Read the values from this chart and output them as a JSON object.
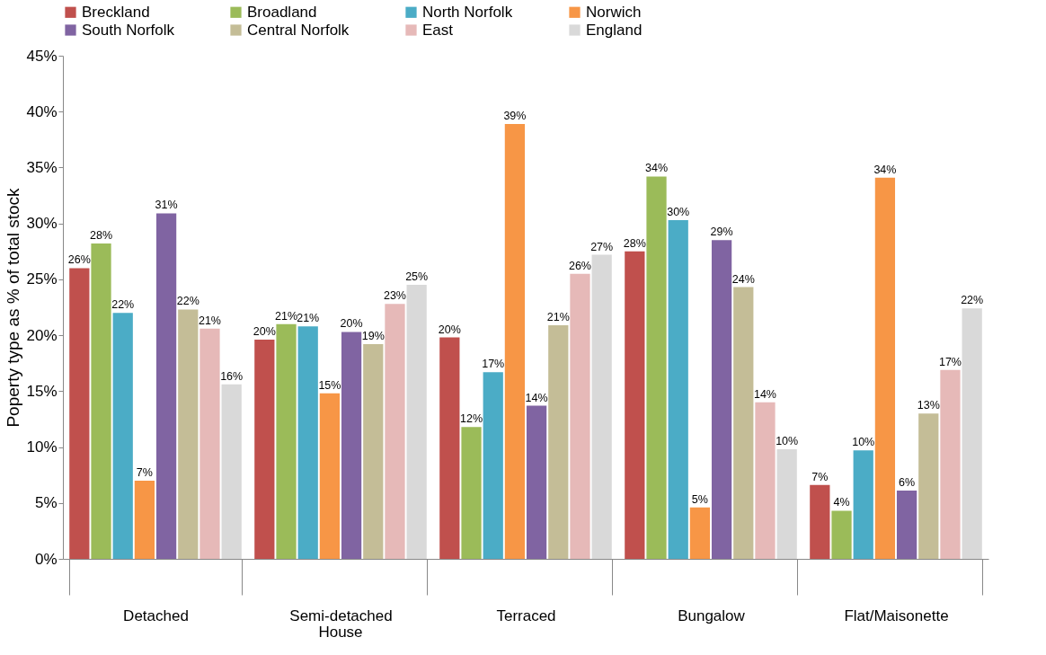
{
  "chart_data": {
    "type": "bar",
    "ylabel": "Poperty type as % of total stock",
    "categories": [
      "Detached",
      "Semi-detached",
      "Terraced",
      "Bungalow",
      "Flat/Maisonette"
    ],
    "series": [
      {
        "name": "Breckland",
        "color": "#c0504d",
        "values": [
          26.0,
          19.6,
          19.8,
          27.5,
          6.6
        ],
        "value_labels": [
          "26%",
          "20%",
          "20%",
          "28%",
          "7%"
        ]
      },
      {
        "name": "Broadland",
        "color": "#9bbb59",
        "values": [
          28.2,
          21.0,
          11.8,
          34.2,
          4.3
        ],
        "value_labels": [
          "28%",
          "21%",
          "12%",
          "34%",
          "4%"
        ]
      },
      {
        "name": "North Norfolk",
        "color": "#4bacc6",
        "values": [
          22.0,
          20.8,
          16.7,
          30.3,
          9.7
        ],
        "value_labels": [
          "22%",
          "21%",
          "17%",
          "30%",
          "10%"
        ]
      },
      {
        "name": "Norwich",
        "color": "#f79646",
        "values": [
          7.0,
          14.8,
          38.9,
          4.6,
          34.1
        ],
        "value_labels": [
          "7%",
          "15%",
          "39%",
          "5%",
          "34%"
        ]
      },
      {
        "name": "South Norfolk",
        "color": "#8064a2",
        "values": [
          30.9,
          20.3,
          13.7,
          28.5,
          6.1
        ],
        "value_labels": [
          "31%",
          "20%",
          "14%",
          "29%",
          "6%"
        ]
      },
      {
        "name": "Central Norfolk",
        "color": "#c4bd97",
        "values": [
          22.3,
          19.2,
          20.9,
          24.3,
          13.0
        ],
        "value_labels": [
          "22%",
          "19%",
          "21%",
          "24%",
          "13%"
        ]
      },
      {
        "name": "East",
        "color": "#e6b9b8",
        "values": [
          20.6,
          22.8,
          25.5,
          14.0,
          16.9
        ],
        "value_labels": [
          "21%",
          "23%",
          "26%",
          "14%",
          "17%"
        ]
      },
      {
        "name": "England",
        "color": "#d9d9d9",
        "values": [
          15.6,
          24.5,
          27.2,
          9.8,
          22.4
        ],
        "value_labels": [
          "16%",
          "25%",
          "27%",
          "10%",
          "22%"
        ]
      }
    ],
    "ylim": [
      0,
      45
    ],
    "yticks": [
      {
        "value": 0,
        "label": "0%"
      },
      {
        "value": 5,
        "label": "5%"
      },
      {
        "value": 10,
        "label": "10%"
      },
      {
        "value": 15,
        "label": "15%"
      },
      {
        "value": 20,
        "label": "20%"
      },
      {
        "value": 25,
        "label": "25%"
      },
      {
        "value": 30,
        "label": "30%"
      },
      {
        "value": 35,
        "label": "35%"
      },
      {
        "value": 40,
        "label": "40%"
      },
      {
        "value": 45,
        "label": "45%"
      }
    ],
    "annotations": [
      "House"
    ],
    "grid": false,
    "legend": "top"
  }
}
